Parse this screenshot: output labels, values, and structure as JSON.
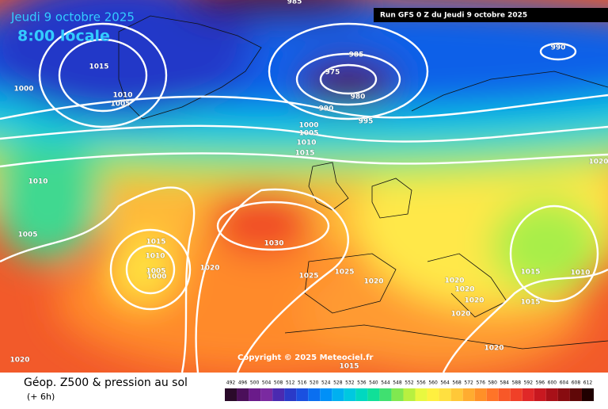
{
  "header": {
    "date": "Jeudi 9 octobre 2025",
    "time": "8:00 locale",
    "run": "Run GFS 0 Z du Jeudi 9 octobre 2025"
  },
  "copyright": "Copyright © 2025 Meteociel.fr",
  "footer": {
    "title": "Géop. Z500 & pression au sol",
    "step": "(+ 6h)"
  },
  "isobar_labels": [
    985,
    985,
    975,
    980,
    990,
    995,
    1000,
    1005,
    1010,
    1015,
    990,
    1015,
    1010,
    1005,
    1000,
    1010,
    1005,
    1015,
    1010,
    1005,
    1000,
    1020,
    1030,
    1025,
    1025,
    1020,
    1020,
    1020,
    1020,
    1020,
    1015,
    1010,
    1015,
    1020,
    1020,
    1015,
    1020
  ],
  "legend": {
    "values": [
      492,
      496,
      500,
      504,
      508,
      512,
      516,
      520,
      524,
      528,
      532,
      536,
      540,
      544,
      548,
      552,
      556,
      560,
      564,
      568,
      572,
      576,
      580,
      584,
      588,
      592,
      596,
      600,
      604,
      608,
      612
    ],
    "colors": [
      "#2a0a2a",
      "#4b0f5a",
      "#6a1b8a",
      "#7a2aa0",
      "#4b2ab0",
      "#2a3ac8",
      "#1a50e0",
      "#0a6ff0",
      "#0090f8",
      "#00b0f0",
      "#00c8e0",
      "#00d8c0",
      "#10e098",
      "#40e070",
      "#80e850",
      "#b8f040",
      "#e8f840",
      "#fff040",
      "#ffe040",
      "#ffc838",
      "#ffac30",
      "#ff9028",
      "#ff7428",
      "#f85828",
      "#f04028",
      "#e02828",
      "#c81820",
      "#a81018",
      "#880c10",
      "#600808",
      "#200000"
    ]
  }
}
